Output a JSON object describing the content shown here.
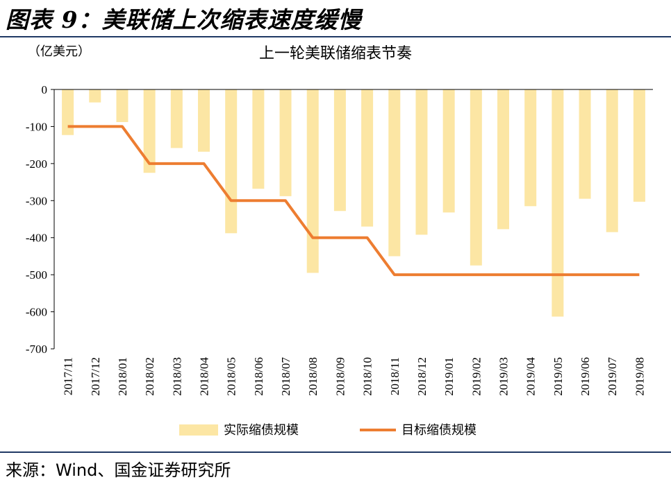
{
  "figure": {
    "title": "图表 9：美联储上次缩表速度缓慢",
    "source": "来源：Wind、国金证券研究所"
  },
  "colors": {
    "bar": "#FCE6A4",
    "line": "#ED7D31",
    "rule": "#1f3864"
  },
  "chart_data": {
    "type": "bar",
    "title": "上一轮美联储缩表节奏",
    "unit": "（亿美元）",
    "categories": [
      "2017/11",
      "2017/12",
      "2018/01",
      "2018/02",
      "2018/03",
      "2018/04",
      "2018/05",
      "2018/06",
      "2018/07",
      "2018/08",
      "2018/09",
      "2018/10",
      "2018/11",
      "2018/12",
      "2019/01",
      "2019/02",
      "2019/03",
      "2019/04",
      "2019/05",
      "2019/06",
      "2019/07",
      "2019/08"
    ],
    "series": [
      {
        "name": "实际缩债规模",
        "type": "bar",
        "values": [
          -123,
          -35,
          -88,
          -225,
          -158,
          -168,
          -388,
          -268,
          -288,
          -495,
          -328,
          -370,
          -450,
          -392,
          -332,
          -475,
          -377,
          -315,
          -613,
          -295,
          -385,
          -303
        ]
      },
      {
        "name": "目标缩债规模",
        "type": "line",
        "values": [
          -100,
          -100,
          -100,
          -200,
          -200,
          -200,
          -300,
          -300,
          -300,
          -400,
          -400,
          -400,
          -500,
          -500,
          -500,
          -500,
          -500,
          -500,
          -500,
          -500,
          -500,
          -500
        ]
      }
    ],
    "yticks": [
      "0",
      "-100",
      "-200",
      "-300",
      "-400",
      "-500",
      "-600",
      "-700"
    ],
    "ylim": [
      -700,
      0
    ],
    "grid": false,
    "legend": "bottom"
  }
}
